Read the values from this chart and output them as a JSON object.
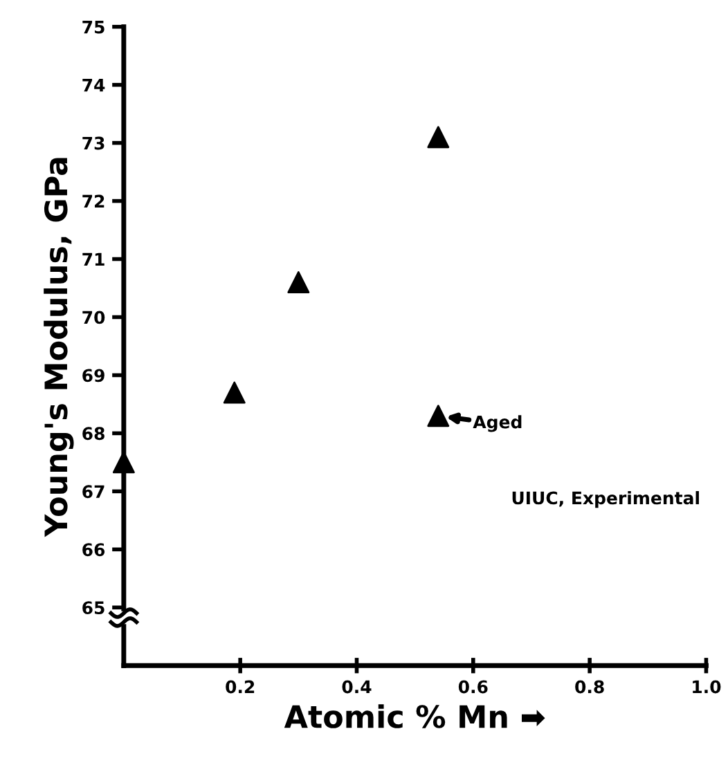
{
  "chart_data": {
    "type": "scatter",
    "xlabel": "Atomic % Mn ➡",
    "ylabel": "Young's Modulus, GPa",
    "x": [
      0.0,
      0.19,
      0.3,
      0.54,
      0.54
    ],
    "series": [
      {
        "color": "#000000",
        "values": [
          67.5,
          68.7,
          70.6,
          73.1,
          68.3
        ]
      }
    ],
    "marker": "triangle",
    "xlim": [
      0,
      1.0
    ],
    "ylim": [
      64,
      75
    ],
    "xticks": [
      0.2,
      0.4,
      0.6,
      0.8,
      {
        "value": 1.0,
        "label": "1.0"
      }
    ],
    "yticks": [
      65,
      66,
      67,
      68,
      69,
      70,
      71,
      72,
      73,
      74,
      75
    ],
    "annotations": [
      {
        "text": "Aged",
        "x": 0.54,
        "y": 68.3
      },
      "UIUC, Experimental"
    ]
  }
}
